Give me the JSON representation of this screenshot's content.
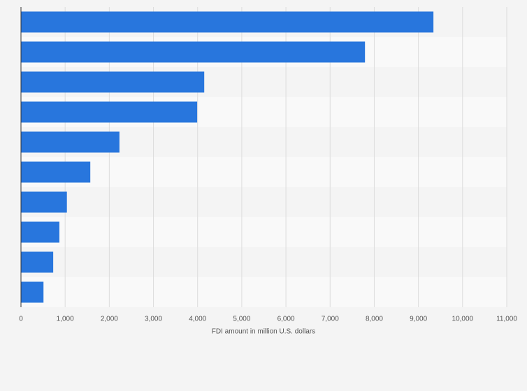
{
  "chart_data": {
    "type": "barh",
    "x_label": "FDI amount in million U.S. dollars",
    "categories": [
      null,
      null,
      null,
      null,
      null,
      null,
      null,
      null,
      null,
      null
    ],
    "values": [
      9340,
      7790,
      4150,
      3990,
      2230,
      1570,
      1040,
      870,
      730,
      510
    ],
    "color": "#2876dd",
    "xlim": [
      0,
      11000
    ],
    "xticks": [
      0,
      {
        "value": 1000,
        "label": "1,000"
      },
      {
        "value": 2000,
        "label": "2,000"
      },
      {
        "value": 3000,
        "label": "3,000"
      },
      {
        "value": 4000,
        "label": "4,000"
      },
      {
        "value": 5000,
        "label": "5,000"
      },
      {
        "value": 6000,
        "label": "6,000"
      },
      {
        "value": 7000,
        "label": "7,000"
      },
      {
        "value": 8000,
        "label": "8,000"
      },
      {
        "value": 9000,
        "label": "9,000"
      },
      {
        "value": 10000,
        "label": "10,000"
      },
      {
        "value": 11000,
        "label": "11,000"
      }
    ],
    "grid": true
  }
}
